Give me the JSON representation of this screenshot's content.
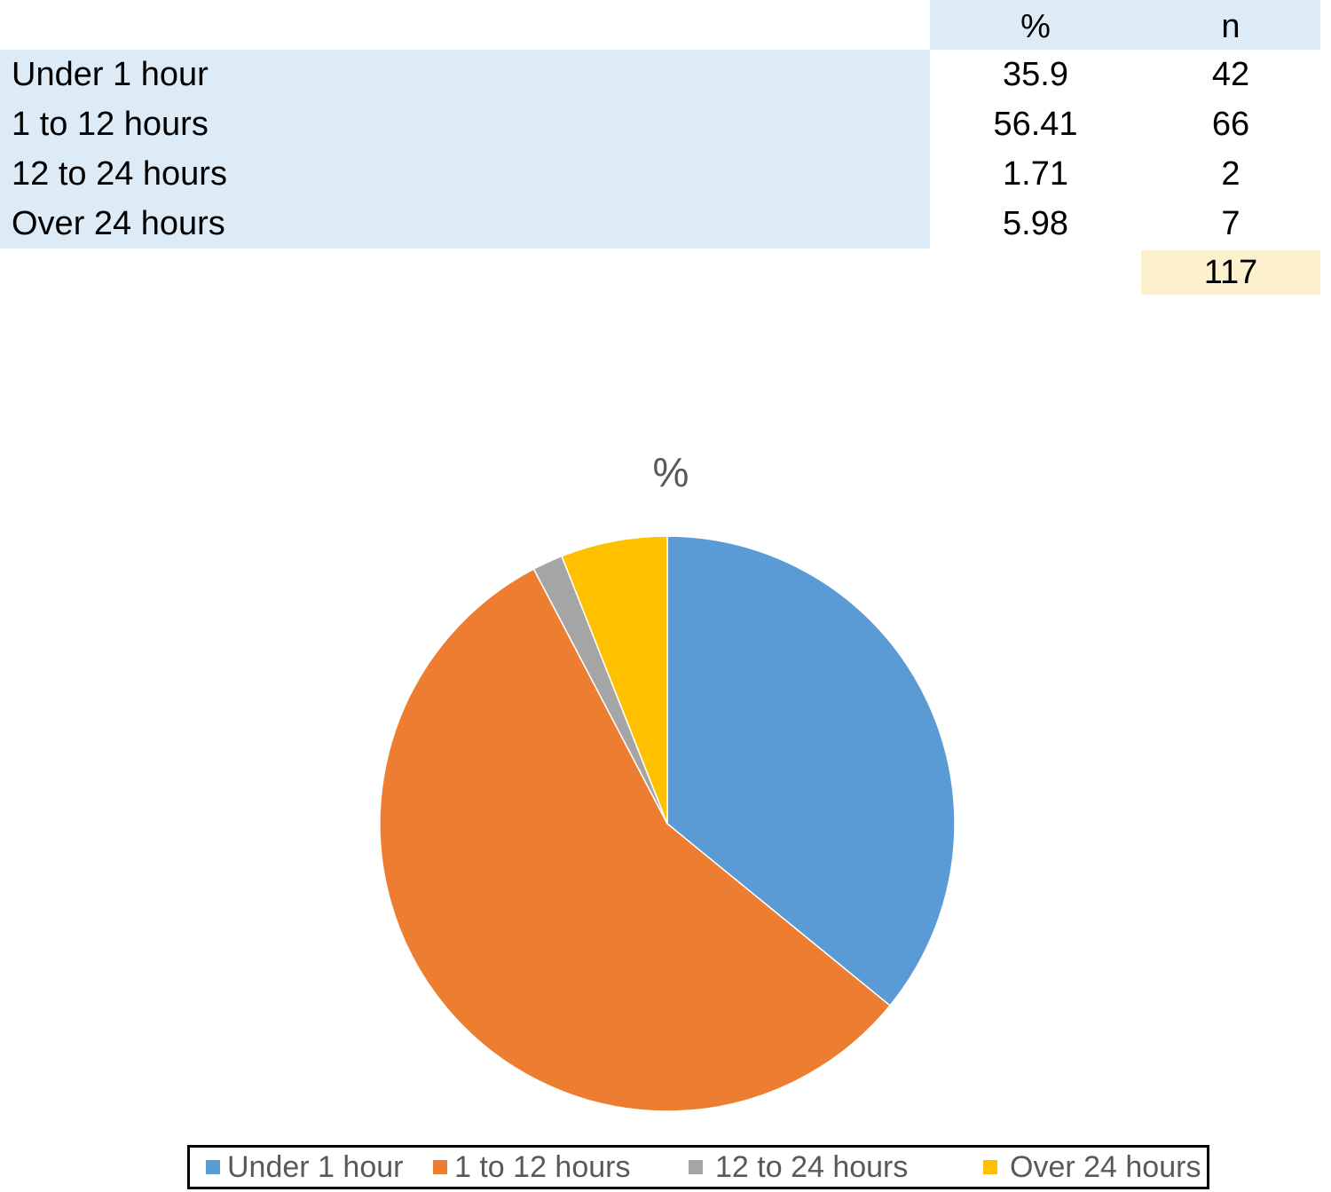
{
  "table": {
    "headers": {
      "category": "",
      "percent": "%",
      "count": "n"
    },
    "rows": [
      {
        "label": "Under 1 hour",
        "percent": "35.9",
        "count": "42"
      },
      {
        "label": "1 to 12 hours",
        "percent": "56.41",
        "count": "66"
      },
      {
        "label": "12 to 24 hours",
        "percent": "1.71",
        "count": "2"
      },
      {
        "label": "Over 24 hours",
        "percent": "5.98",
        "count": "7"
      }
    ],
    "total": "117"
  },
  "chart_data": {
    "type": "pie",
    "title": "%",
    "categories": [
      "Under 1 hour",
      "1 to 12 hours",
      "12 to 24 hours",
      "Over 24 hours"
    ],
    "values": [
      35.9,
      56.41,
      1.71,
      5.98
    ],
    "colors": [
      "#5b9bd5",
      "#ed7d31",
      "#a5a5a5",
      "#ffc000"
    ],
    "legend": "bottom"
  }
}
